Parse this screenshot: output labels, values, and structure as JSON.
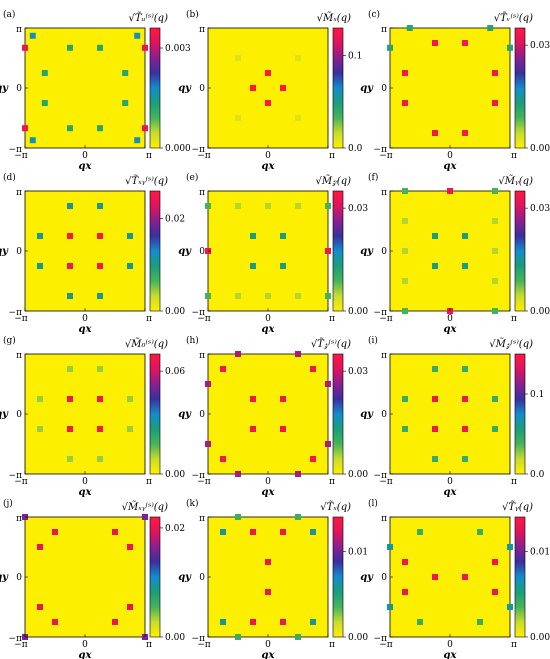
{
  "chart_data": [
    {
      "type": "heatmap",
      "panel": "(a)",
      "title": "√T̃ᵤ⁽ˢ⁾(q)",
      "colorbar_ticks": [
        "0.003",
        "0.000"
      ],
      "peak_value": 0.0036,
      "x_ticks": [
        "−π",
        "0",
        "π"
      ],
      "y_ticks": [
        "π",
        "0",
        "−π"
      ],
      "xlabel": "qx",
      "ylabel": "qy",
      "points": [
        {
          "x": -0.87,
          "y": 0.87,
          "v": 0.0017
        },
        {
          "x": 0.87,
          "y": 0.87,
          "v": 0.0017
        },
        {
          "x": -0.87,
          "y": -0.87,
          "v": 0.0017
        },
        {
          "x": 0.87,
          "y": -0.87,
          "v": 0.0017
        },
        {
          "x": -1,
          "y": 0.67,
          "v": 0.0033
        },
        {
          "x": 1,
          "y": 0.67,
          "v": 0.0033
        },
        {
          "x": -1,
          "y": -0.67,
          "v": 0.0033
        },
        {
          "x": 1,
          "y": -0.67,
          "v": 0.0033
        },
        {
          "x": -0.25,
          "y": 0.67,
          "v": 0.0012
        },
        {
          "x": 0.25,
          "y": 0.67,
          "v": 0.0012
        },
        {
          "x": -0.25,
          "y": -0.67,
          "v": 0.0012
        },
        {
          "x": 0.25,
          "y": -0.67,
          "v": 0.0012
        },
        {
          "x": -0.67,
          "y": 0.25,
          "v": 0.0012
        },
        {
          "x": 0.67,
          "y": 0.25,
          "v": 0.0012
        },
        {
          "x": -0.67,
          "y": -0.25,
          "v": 0.0012
        },
        {
          "x": 0.67,
          "y": -0.25,
          "v": 0.0012
        }
      ]
    },
    {
      "type": "heatmap",
      "panel": "(b)",
      "title": "√M̃ₓ(q)",
      "colorbar_ticks": [
        "0.1",
        "0.0"
      ],
      "peak_value": 0.13,
      "x_ticks": [
        "−π",
        "0",
        "π"
      ],
      "y_ticks": [
        "π",
        "0",
        "−π"
      ],
      "xlabel": "qx",
      "ylabel": "qy",
      "points": [
        {
          "x": 0,
          "y": 0.25,
          "v": 0.13
        },
        {
          "x": -0.25,
          "y": 0,
          "v": 0.13
        },
        {
          "x": 0.25,
          "y": 0,
          "v": 0.13
        },
        {
          "x": 0,
          "y": -0.25,
          "v": 0.13
        },
        {
          "x": -0.5,
          "y": 0.5,
          "v": 0.01
        },
        {
          "x": 0.5,
          "y": 0.5,
          "v": 0.01
        },
        {
          "x": -0.5,
          "y": -0.5,
          "v": 0.01
        },
        {
          "x": 0.5,
          "y": -0.5,
          "v": 0.01
        }
      ]
    },
    {
      "type": "heatmap",
      "panel": "(c)",
      "title": "√T̃ᵥ⁽ˢ⁾(q)",
      "colorbar_ticks": [
        "0.03",
        "0.00"
      ],
      "peak_value": 0.035,
      "x_ticks": [
        "−π",
        "0",
        "π"
      ],
      "y_ticks": [
        "π",
        "0",
        "−π"
      ],
      "xlabel": "qx",
      "ylabel": "qy",
      "points": [
        {
          "x": -0.25,
          "y": 0.75,
          "v": 0.033
        },
        {
          "x": 0.25,
          "y": 0.75,
          "v": 0.033
        },
        {
          "x": -0.25,
          "y": -0.75,
          "v": 0.033
        },
        {
          "x": 0.25,
          "y": -0.75,
          "v": 0.033
        },
        {
          "x": -0.75,
          "y": 0.25,
          "v": 0.033
        },
        {
          "x": 0.75,
          "y": 0.25,
          "v": 0.033
        },
        {
          "x": -0.75,
          "y": -0.25,
          "v": 0.033
        },
        {
          "x": 0.75,
          "y": -0.25,
          "v": 0.033
        },
        {
          "x": -0.67,
          "y": 1,
          "v": 0.012
        },
        {
          "x": 0.67,
          "y": 1,
          "v": 0.012
        },
        {
          "x": -1,
          "y": 0.67,
          "v": 0.012
        },
        {
          "x": 1,
          "y": 0.67,
          "v": 0.012
        }
      ]
    },
    {
      "type": "heatmap",
      "panel": "(d)",
      "title": "√T̃ₓᵧ⁽ˢ⁾(q)",
      "colorbar_ticks": [
        "0.02",
        "0.00"
      ],
      "peak_value": 0.026,
      "x_ticks": [
        "−π",
        "0",
        "π"
      ],
      "y_ticks": [
        "π",
        "0",
        "−π"
      ],
      "xlabel": "qx",
      "ylabel": "qy",
      "points": [
        {
          "x": -0.25,
          "y": 0.25,
          "v": 0.025
        },
        {
          "x": 0.25,
          "y": 0.25,
          "v": 0.025
        },
        {
          "x": -0.25,
          "y": -0.25,
          "v": 0.025
        },
        {
          "x": 0.25,
          "y": -0.25,
          "v": 0.025
        },
        {
          "x": -0.25,
          "y": 0.75,
          "v": 0.011
        },
        {
          "x": 0.25,
          "y": 0.75,
          "v": 0.011
        },
        {
          "x": -0.25,
          "y": -0.75,
          "v": 0.011
        },
        {
          "x": 0.25,
          "y": -0.75,
          "v": 0.011
        },
        {
          "x": -0.75,
          "y": 0.25,
          "v": 0.011
        },
        {
          "x": 0.75,
          "y": 0.25,
          "v": 0.011
        },
        {
          "x": -0.75,
          "y": -0.25,
          "v": 0.011
        },
        {
          "x": 0.75,
          "y": -0.25,
          "v": 0.011
        }
      ]
    },
    {
      "type": "heatmap",
      "panel": "(e)",
      "title": "√M̃𝓏(q)",
      "colorbar_ticks": [
        "0.03",
        "0.00"
      ],
      "peak_value": 0.035,
      "x_ticks": [
        "−π",
        "0",
        "π"
      ],
      "y_ticks": [
        "π",
        "0",
        "−π"
      ],
      "xlabel": "qx",
      "ylabel": "qy",
      "points": [
        {
          "x": -0.25,
          "y": 0.25,
          "v": 0.013
        },
        {
          "x": 0.25,
          "y": 0.25,
          "v": 0.013
        },
        {
          "x": -0.25,
          "y": -0.25,
          "v": 0.013
        },
        {
          "x": 0.25,
          "y": -0.25,
          "v": 0.013
        },
        {
          "x": -1,
          "y": 0,
          "v": 0.033
        },
        {
          "x": 1,
          "y": 0,
          "v": 0.033
        },
        {
          "x": -1,
          "y": 0.75,
          "v": 0.009
        },
        {
          "x": 1,
          "y": 0.75,
          "v": 0.009
        },
        {
          "x": -1,
          "y": -0.75,
          "v": 0.009
        },
        {
          "x": 1,
          "y": -0.75,
          "v": 0.009
        },
        {
          "x": -0.5,
          "y": 0.75,
          "v": 0.005
        },
        {
          "x": 0,
          "y": 0.75,
          "v": 0.005
        },
        {
          "x": 0.5,
          "y": 0.75,
          "v": 0.005
        },
        {
          "x": -0.5,
          "y": -0.75,
          "v": 0.005
        },
        {
          "x": 0,
          "y": -0.75,
          "v": 0.005
        },
        {
          "x": 0.5,
          "y": -0.75,
          "v": 0.005
        }
      ]
    },
    {
      "type": "heatmap",
      "panel": "(f)",
      "title": "√M̃ᵧ(q)",
      "colorbar_ticks": [
        "0.03",
        "0.00"
      ],
      "peak_value": 0.035,
      "x_ticks": [
        "−π",
        "0",
        "π"
      ],
      "y_ticks": [
        "π",
        "0",
        "−π"
      ],
      "xlabel": "qx",
      "ylabel": "qy",
      "points": [
        {
          "x": -0.25,
          "y": 0.25,
          "v": 0.013
        },
        {
          "x": 0.25,
          "y": 0.25,
          "v": 0.013
        },
        {
          "x": -0.25,
          "y": -0.25,
          "v": 0.013
        },
        {
          "x": 0.25,
          "y": -0.25,
          "v": 0.013
        },
        {
          "x": 0,
          "y": 1,
          "v": 0.033
        },
        {
          "x": 0,
          "y": -1,
          "v": 0.033
        },
        {
          "x": -0.75,
          "y": 1,
          "v": 0.009
        },
        {
          "x": 0.75,
          "y": 1,
          "v": 0.009
        },
        {
          "x": -0.75,
          "y": -1,
          "v": 0.009
        },
        {
          "x": 0.75,
          "y": -1,
          "v": 0.009
        },
        {
          "x": -0.75,
          "y": 0.5,
          "v": 0.005
        },
        {
          "x": -0.75,
          "y": 0,
          "v": 0.005
        },
        {
          "x": -0.75,
          "y": -0.5,
          "v": 0.005
        },
        {
          "x": 0.75,
          "y": 0.5,
          "v": 0.005
        },
        {
          "x": 0.75,
          "y": 0,
          "v": 0.005
        },
        {
          "x": 0.75,
          "y": -0.5,
          "v": 0.005
        }
      ]
    },
    {
      "type": "heatmap",
      "panel": "(g)",
      "title": "√M̃₀⁽ˢ⁾(q)",
      "colorbar_ticks": [
        "0.06",
        "0.00"
      ],
      "peak_value": 0.07,
      "x_ticks": [
        "−π",
        "0",
        "π"
      ],
      "y_ticks": [
        "π",
        "0",
        "−π"
      ],
      "xlabel": "qx",
      "ylabel": "qy",
      "points": [
        {
          "x": -0.25,
          "y": 0.25,
          "v": 0.067
        },
        {
          "x": 0.25,
          "y": 0.25,
          "v": 0.067
        },
        {
          "x": -0.25,
          "y": -0.25,
          "v": 0.067
        },
        {
          "x": 0.25,
          "y": -0.25,
          "v": 0.067
        },
        {
          "x": -0.25,
          "y": 0.75,
          "v": 0.012
        },
        {
          "x": 0.25,
          "y": 0.75,
          "v": 0.012
        },
        {
          "x": -0.25,
          "y": -0.75,
          "v": 0.012
        },
        {
          "x": 0.25,
          "y": -0.75,
          "v": 0.012
        },
        {
          "x": -0.75,
          "y": 0.25,
          "v": 0.012
        },
        {
          "x": 0.75,
          "y": 0.25,
          "v": 0.012
        },
        {
          "x": -0.75,
          "y": -0.25,
          "v": 0.012
        },
        {
          "x": 0.75,
          "y": -0.25,
          "v": 0.012
        }
      ]
    },
    {
      "type": "heatmap",
      "panel": "(h)",
      "title": "√T̃𝓏⁽ˢ⁾(q)",
      "colorbar_ticks": [
        "0.03",
        "0.00"
      ],
      "peak_value": 0.035,
      "x_ticks": [
        "−π",
        "0",
        "π"
      ],
      "y_ticks": [
        "π",
        "0",
        "−π"
      ],
      "xlabel": "qx",
      "ylabel": "qy",
      "points": [
        {
          "x": -0.25,
          "y": 0.25,
          "v": 0.033
        },
        {
          "x": 0.25,
          "y": 0.25,
          "v": 0.033
        },
        {
          "x": -0.25,
          "y": -0.25,
          "v": 0.033
        },
        {
          "x": 0.25,
          "y": -0.25,
          "v": 0.033
        },
        {
          "x": -0.75,
          "y": 0.75,
          "v": 0.033
        },
        {
          "x": 0.75,
          "y": 0.75,
          "v": 0.033
        },
        {
          "x": -0.75,
          "y": -0.75,
          "v": 0.033
        },
        {
          "x": 0.75,
          "y": -0.75,
          "v": 0.033
        },
        {
          "x": -1,
          "y": 0.5,
          "v": 0.028
        },
        {
          "x": 1,
          "y": 0.5,
          "v": 0.028
        },
        {
          "x": -1,
          "y": -0.5,
          "v": 0.028
        },
        {
          "x": 1,
          "y": -0.5,
          "v": 0.028
        },
        {
          "x": -0.5,
          "y": 1,
          "v": 0.028
        },
        {
          "x": 0.5,
          "y": 1,
          "v": 0.028
        },
        {
          "x": -0.5,
          "y": -1,
          "v": 0.028
        },
        {
          "x": 0.5,
          "y": -1,
          "v": 0.028
        }
      ]
    },
    {
      "type": "heatmap",
      "panel": "(i)",
      "title": "√M̃𝓏⁽ˢ⁾(q)",
      "colorbar_ticks": [
        "0.1",
        "0.0"
      ],
      "peak_value": 0.15,
      "x_ticks": [
        "−π",
        "0",
        "π"
      ],
      "y_ticks": [
        "π",
        "0",
        "−π"
      ],
      "xlabel": "qx",
      "ylabel": "qy",
      "points": [
        {
          "x": -0.25,
          "y": 0.25,
          "v": 0.14
        },
        {
          "x": 0.25,
          "y": 0.25,
          "v": 0.14
        },
        {
          "x": -0.25,
          "y": -0.25,
          "v": 0.14
        },
        {
          "x": 0.25,
          "y": -0.25,
          "v": 0.14
        },
        {
          "x": -0.25,
          "y": 0.75,
          "v": 0.045
        },
        {
          "x": 0.25,
          "y": 0.75,
          "v": 0.045
        },
        {
          "x": -0.25,
          "y": -0.75,
          "v": 0.045
        },
        {
          "x": 0.25,
          "y": -0.75,
          "v": 0.045
        },
        {
          "x": -0.75,
          "y": 0.25,
          "v": 0.045
        },
        {
          "x": 0.75,
          "y": 0.25,
          "v": 0.045
        },
        {
          "x": -0.75,
          "y": -0.25,
          "v": 0.045
        },
        {
          "x": 0.75,
          "y": -0.25,
          "v": 0.045
        }
      ]
    },
    {
      "type": "heatmap",
      "panel": "(j)",
      "title": "√M̃ₓᵧ⁽ˢ⁾(q)",
      "colorbar_ticks": [
        "0.02",
        "0.00"
      ],
      "peak_value": 0.022,
      "x_ticks": [
        "−π",
        "0",
        "π"
      ],
      "y_ticks": [
        "π",
        "0",
        "−π"
      ],
      "xlabel": "qx",
      "ylabel": "qy",
      "points": [
        {
          "x": -0.75,
          "y": 0.5,
          "v": 0.02
        },
        {
          "x": 0.75,
          "y": 0.5,
          "v": 0.02
        },
        {
          "x": -0.75,
          "y": -0.5,
          "v": 0.02
        },
        {
          "x": 0.75,
          "y": -0.5,
          "v": 0.02
        },
        {
          "x": -0.5,
          "y": 0.75,
          "v": 0.02
        },
        {
          "x": 0.5,
          "y": 0.75,
          "v": 0.02
        },
        {
          "x": -0.5,
          "y": -0.75,
          "v": 0.02
        },
        {
          "x": 0.5,
          "y": -0.75,
          "v": 0.02
        },
        {
          "x": -1,
          "y": 1,
          "v": 0.016
        },
        {
          "x": 1,
          "y": 1,
          "v": 0.016
        },
        {
          "x": -1,
          "y": -1,
          "v": 0.016
        },
        {
          "x": 1,
          "y": -1,
          "v": 0.016
        }
      ]
    },
    {
      "type": "heatmap",
      "panel": "(k)",
      "title": "√T̃ₓ(q)",
      "colorbar_ticks": [
        "0.01",
        "0.00"
      ],
      "peak_value": 0.014,
      "x_ticks": [
        "−π",
        "0",
        "π"
      ],
      "y_ticks": [
        "π",
        "0",
        "−π"
      ],
      "xlabel": "qx",
      "ylabel": "qy",
      "points": [
        {
          "x": 0,
          "y": 0.25,
          "v": 0.013
        },
        {
          "x": 0,
          "y": -0.25,
          "v": 0.013
        },
        {
          "x": -0.25,
          "y": 0.75,
          "v": 0.013
        },
        {
          "x": 0.25,
          "y": 0.75,
          "v": 0.013
        },
        {
          "x": -0.25,
          "y": -0.75,
          "v": 0.013
        },
        {
          "x": 0.25,
          "y": -0.75,
          "v": 0.013
        },
        {
          "x": -0.75,
          "y": 0.75,
          "v": 0.006
        },
        {
          "x": 0.75,
          "y": 0.75,
          "v": 0.006
        },
        {
          "x": -0.75,
          "y": -0.75,
          "v": 0.006
        },
        {
          "x": 0.75,
          "y": -0.75,
          "v": 0.006
        },
        {
          "x": -0.5,
          "y": 1,
          "v": 0.004
        },
        {
          "x": 0.5,
          "y": 1,
          "v": 0.004
        },
        {
          "x": -0.5,
          "y": -1,
          "v": 0.004
        },
        {
          "x": 0.5,
          "y": -1,
          "v": 0.004
        }
      ]
    },
    {
      "type": "heatmap",
      "panel": "(l)",
      "title": "√T̃ᵧ(q)",
      "colorbar_ticks": [
        "0.01",
        "0.00"
      ],
      "peak_value": 0.014,
      "x_ticks": [
        "−π",
        "0",
        "π"
      ],
      "y_ticks": [
        "π",
        "0",
        "−π"
      ],
      "xlabel": "qx",
      "ylabel": "qy",
      "points": [
        {
          "x": -0.25,
          "y": 0,
          "v": 0.013
        },
        {
          "x": 0.25,
          "y": 0,
          "v": 0.013
        },
        {
          "x": -0.75,
          "y": 0.25,
          "v": 0.013
        },
        {
          "x": 0.75,
          "y": 0.25,
          "v": 0.013
        },
        {
          "x": -0.75,
          "y": -0.25,
          "v": 0.013
        },
        {
          "x": 0.75,
          "y": -0.25,
          "v": 0.013
        },
        {
          "x": -1,
          "y": 0.5,
          "v": 0.006
        },
        {
          "x": 1,
          "y": 0.5,
          "v": 0.006
        },
        {
          "x": -1,
          "y": -0.5,
          "v": 0.006
        },
        {
          "x": 1,
          "y": -0.5,
          "v": 0.006
        },
        {
          "x": -0.5,
          "y": 0.75,
          "v": 0.004
        },
        {
          "x": 0.5,
          "y": 0.75,
          "v": 0.004
        },
        {
          "x": -0.5,
          "y": -0.75,
          "v": 0.004
        },
        {
          "x": 0.5,
          "y": -0.75,
          "v": 0.004
        }
      ]
    }
  ],
  "colors": {
    "background": "#fcef00",
    "colormap": [
      "#ffef00",
      "#c8dc2a",
      "#45b55a",
      "#1a9e7a",
      "#138ccd",
      "#3b2fa0",
      "#8a1f8f",
      "#e0145e",
      "#ff1744"
    ]
  }
}
